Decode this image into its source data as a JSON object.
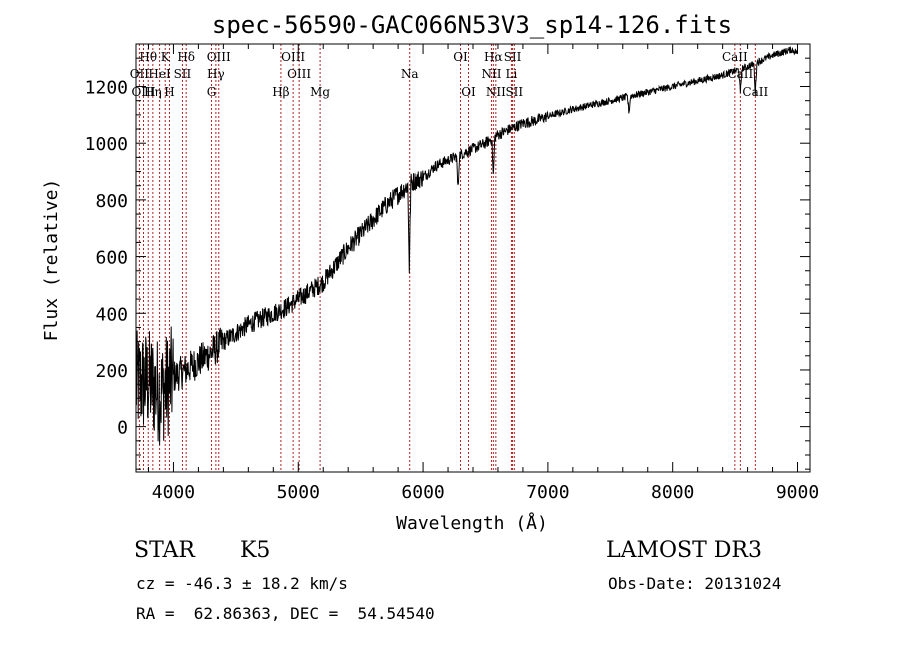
{
  "chart_data": {
    "type": "line",
    "title": "spec-56590-GAC066N53V3_sp14-126.fits",
    "xlabel": "Wavelength (Å)",
    "ylabel": "Flux (relative)",
    "xlim": [
      3700,
      9100
    ],
    "ylim": [
      -160,
      1350
    ],
    "xticks": [
      4000,
      5000,
      6000,
      7000,
      8000,
      9000
    ],
    "yticks": [
      0,
      200,
      400,
      600,
      800,
      1000,
      1200
    ],
    "spectrum_anchors": [
      [
        3700,
        150
      ],
      [
        3800,
        160
      ],
      [
        3900,
        120
      ],
      [
        4000,
        175
      ],
      [
        4100,
        200
      ],
      [
        4200,
        230
      ],
      [
        4300,
        260
      ],
      [
        4400,
        300
      ],
      [
        4500,
        330
      ],
      [
        4600,
        360
      ],
      [
        4700,
        380
      ],
      [
        4800,
        400
      ],
      [
        4900,
        420
      ],
      [
        5000,
        450
      ],
      [
        5100,
        480
      ],
      [
        5200,
        510
      ],
      [
        5300,
        570
      ],
      [
        5400,
        630
      ],
      [
        5500,
        680
      ],
      [
        5600,
        730
      ],
      [
        5700,
        780
      ],
      [
        5800,
        820
      ],
      [
        5900,
        860
      ],
      [
        6000,
        880
      ],
      [
        6100,
        920
      ],
      [
        6200,
        940
      ],
      [
        6300,
        960
      ],
      [
        6400,
        980
      ],
      [
        6500,
        1000
      ],
      [
        6600,
        1030
      ],
      [
        6700,
        1050
      ],
      [
        6800,
        1070
      ],
      [
        6900,
        1080
      ],
      [
        7000,
        1095
      ],
      [
        7200,
        1120
      ],
      [
        7400,
        1140
      ],
      [
        7600,
        1160
      ],
      [
        7800,
        1180
      ],
      [
        8000,
        1200
      ],
      [
        8200,
        1220
      ],
      [
        8400,
        1240
      ],
      [
        8600,
        1270
      ],
      [
        8800,
        1310
      ],
      [
        8950,
        1330
      ],
      [
        9000,
        1320
      ]
    ],
    "absorption_features": [
      {
        "wave": 5890,
        "depth": 300
      },
      {
        "wave": 6280,
        "depth": 120
      },
      {
        "wave": 6563,
        "depth": 140
      },
      {
        "wave": 7650,
        "depth": 60
      },
      {
        "wave": 8542,
        "depth": 90
      },
      {
        "wave": 8662,
        "depth": 110
      }
    ],
    "lines_row1": [
      {
        "label": "Hθ",
        "wave": 3798
      },
      {
        "label": "K",
        "wave": 3934
      },
      {
        "label": "Hδ",
        "wave": 4102
      },
      {
        "label": "OIII",
        "wave": 4363
      },
      {
        "label": "OIII",
        "wave": 4959
      },
      {
        "label": "OI",
        "wave": 6300
      },
      {
        "label": "Hα",
        "wave": 6563
      },
      {
        "label": "SII",
        "wave": 6717
      },
      {
        "label": "CaII",
        "wave": 8498
      }
    ],
    "lines_row2": [
      {
        "label": "OII",
        "wave": 3727
      },
      {
        "label": "HeI",
        "wave": 3889
      },
      {
        "label": "SII",
        "wave": 4072
      },
      {
        "label": "Hγ",
        "wave": 4340
      },
      {
        "label": "OIII",
        "wave": 5007
      },
      {
        "label": "Na",
        "wave": 5893
      },
      {
        "label": "NII",
        "wave": 6548
      },
      {
        "label": "Li",
        "wave": 6708
      },
      {
        "label": "CaII",
        "wave": 8542
      }
    ],
    "lines_row3": [
      {
        "label": "OIII",
        "wave": 3760
      },
      {
        "label": "Hη",
        "wave": 3835
      },
      {
        "label": "H",
        "wave": 3968
      },
      {
        "label": "G",
        "wave": 4305
      },
      {
        "label": "Hβ",
        "wave": 4861
      },
      {
        "label": "Mg",
        "wave": 5175
      },
      {
        "label": "OI",
        "wave": 6364
      },
      {
        "label": "NII",
        "wave": 6583
      },
      {
        "label": "SII",
        "wave": 6731
      },
      {
        "label": "CaII",
        "wave": 8662
      }
    ],
    "line_color": "#000000",
    "marker_color": "#b22222"
  },
  "info": {
    "object_type": "STAR",
    "subclass": "K5",
    "survey": "LAMOST DR3",
    "cz": "cz = -46.3 ± 18.2 km/s",
    "obs_date": "Obs-Date: 20131024",
    "radec": "RA =  62.86363, DEC =  54.54540"
  }
}
